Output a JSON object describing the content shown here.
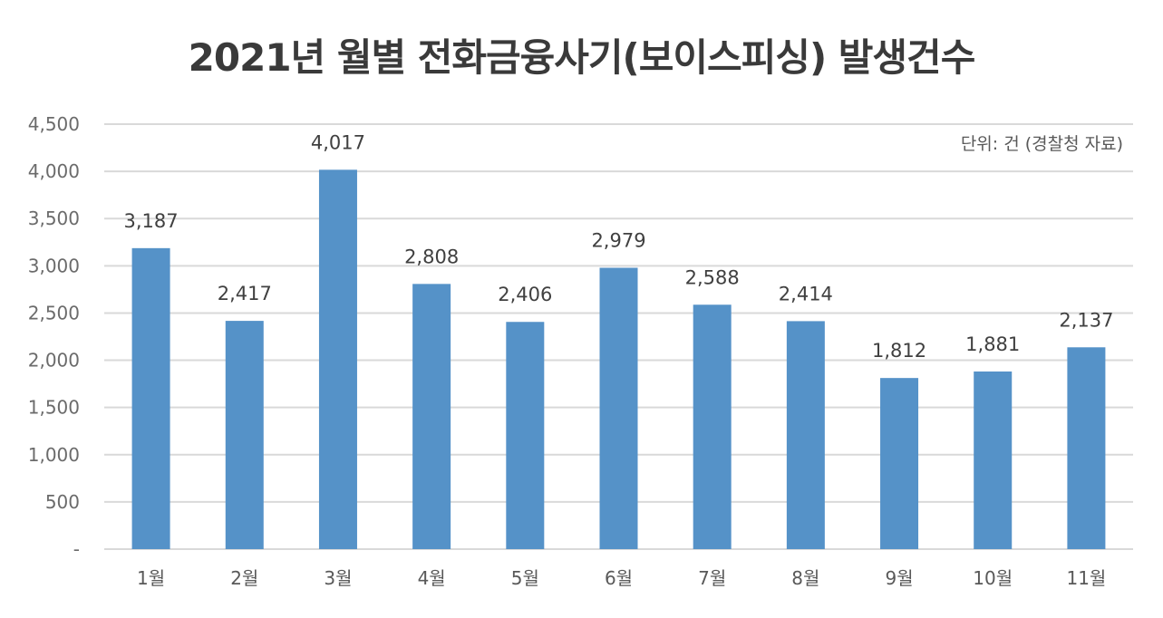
{
  "chart_data": {
    "type": "bar",
    "title": "2021년 월별 전화금융사기(보이스피싱) 발생건수",
    "unit_note": "단위: 건 (경찰청 자료)",
    "categories": [
      "1월",
      "2월",
      "3월",
      "4월",
      "5월",
      "6월",
      "7월",
      "8월",
      "9월",
      "10월",
      "11월"
    ],
    "values": [
      3187,
      2417,
      4017,
      2808,
      2406,
      2979,
      2588,
      2414,
      1812,
      1881,
      2137
    ],
    "value_labels": [
      "3,187",
      "2,417",
      "4,017",
      "2,808",
      "2,406",
      "2,979",
      "2,588",
      "2,414",
      "1,812",
      "1,881",
      "2,137"
    ],
    "yticks": [
      0,
      500,
      1000,
      1500,
      2000,
      2500,
      3000,
      3500,
      4000,
      4500
    ],
    "ytick_labels": [
      "-",
      "500",
      "1,000",
      "1,500",
      "2,000",
      "2,500",
      "3,000",
      "3,500",
      "4,000",
      "4,500"
    ],
    "ylim": [
      0,
      4500
    ],
    "grid": true,
    "bar_color": "#5592c8",
    "grid_color": "#d9d9d9"
  }
}
